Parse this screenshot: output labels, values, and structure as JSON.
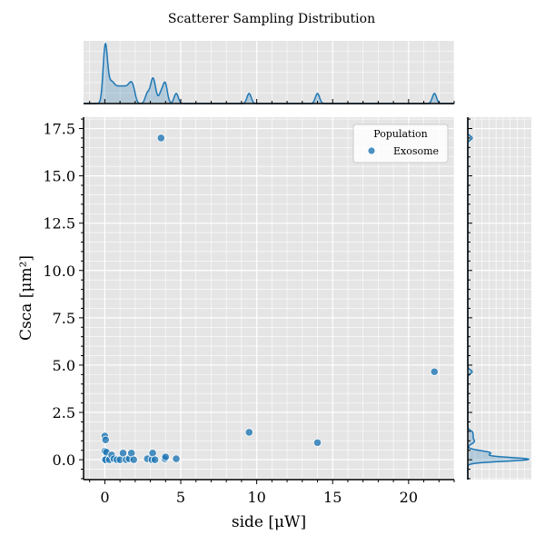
{
  "chart_data": {
    "type": "scatter",
    "title": "Scatterer Sampling Distribution",
    "xlabel": "side [μW]",
    "ylabel": "Csca [μm²]",
    "xlim": [
      -1.4,
      23.0
    ],
    "ylim": [
      -1.05,
      18.1
    ],
    "xticks": [
      0,
      5,
      10,
      15,
      20
    ],
    "yticks": [
      0.0,
      2.5,
      5.0,
      7.5,
      10.0,
      12.5,
      15.0,
      17.5
    ],
    "xtick_labels": [
      "0",
      "5",
      "10",
      "15",
      "20"
    ],
    "ytick_labels": [
      "0.0",
      "2.5",
      "5.0",
      "7.5",
      "10.0",
      "12.5",
      "15.0",
      "17.5"
    ],
    "grid": true,
    "legend": {
      "title": "Population",
      "entries": [
        "Exosome"
      ],
      "placement": "top-right"
    },
    "marginals": {
      "top": "kde",
      "right": "kde"
    },
    "series": [
      {
        "name": "Exosome",
        "color": "#1f77b4",
        "points": [
          [
            3.7,
            17.0
          ],
          [
            21.7,
            4.65
          ],
          [
            9.5,
            1.45
          ],
          [
            14.0,
            0.9
          ],
          [
            0.0,
            1.25
          ],
          [
            0.05,
            1.05
          ],
          [
            0.0,
            0.45
          ],
          [
            0.1,
            0.4
          ],
          [
            0.0,
            0.0
          ],
          [
            0.05,
            0.0
          ],
          [
            0.3,
            0.0
          ],
          [
            0.45,
            0.25
          ],
          [
            0.6,
            0.05
          ],
          [
            0.8,
            0.0
          ],
          [
            1.0,
            0.0
          ],
          [
            1.2,
            0.35
          ],
          [
            1.4,
            0.0
          ],
          [
            1.6,
            0.05
          ],
          [
            1.75,
            0.35
          ],
          [
            1.9,
            0.0
          ],
          [
            2.8,
            0.05
          ],
          [
            3.1,
            0.0
          ],
          [
            3.15,
            0.35
          ],
          [
            3.3,
            0.0
          ],
          [
            3.95,
            0.05
          ],
          [
            4.0,
            0.15
          ],
          [
            4.7,
            0.05
          ]
        ]
      }
    ]
  }
}
